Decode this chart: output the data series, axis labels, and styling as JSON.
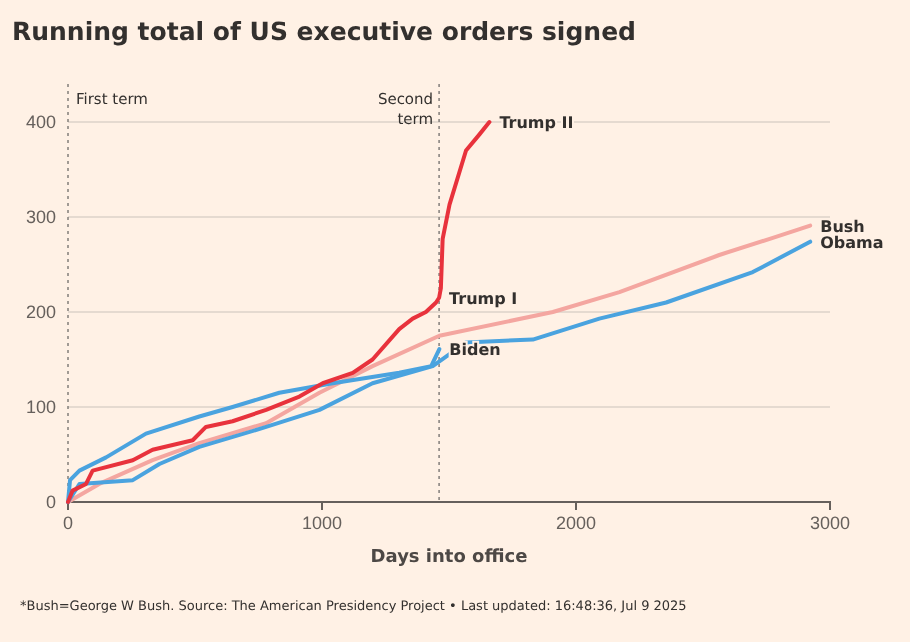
{
  "chart_data": {
    "type": "line",
    "title": "Running total of US executive orders signed",
    "xlabel": "Days into office",
    "xlim": [
      0,
      3000
    ],
    "ylim": [
      0,
      440
    ],
    "xticks": [
      0,
      1000,
      2000,
      3000
    ],
    "yticks": [
      0,
      100,
      200,
      300,
      400
    ],
    "grid": "y",
    "ref_lines": [
      {
        "axis": "x",
        "value": 0,
        "label": "First term",
        "line_style": "dotted"
      },
      {
        "axis": "x",
        "value": 1461,
        "label": "Second term",
        "line_style": "dotted"
      }
    ],
    "annotations": [
      {
        "text": "Trump I",
        "x": 1461,
        "y": 215
      },
      {
        "text": "Trump II",
        "x": 1659,
        "y": 400
      },
      "*Bush=George W Bush. Source: The American Presidency Project • Last updated: 16:48:36, Jul 9 2025"
    ],
    "series": [
      {
        "name": "Bush",
        "color": "#f4a6a0",
        "x": [
          0,
          123,
          333,
          517,
          780,
          990,
          1199,
          1462,
          1909,
          2171,
          2564,
          2775,
          2922
        ],
        "values": [
          0,
          19,
          44,
          62,
          83,
          115,
          143,
          175,
          200,
          221,
          260,
          278,
          291
        ]
      },
      {
        "name": "Obama",
        "color": "#4aa3df",
        "x": [
          0,
          45,
          255,
          360,
          517,
          780,
          990,
          1199,
          1436,
          1567,
          1830,
          2092,
          2355,
          2696,
          2922
        ],
        "values": [
          0,
          19,
          23,
          40,
          58,
          79,
          97,
          125,
          143,
          168,
          171,
          193,
          210,
          242,
          274
        ]
      },
      {
        "name": "Biden",
        "color": "#4aa3df",
        "x": [
          0,
          8,
          45,
          150,
          307,
          517,
          648,
          832,
          1042,
          1304,
          1430,
          1462
        ],
        "values": [
          0,
          23,
          33,
          47,
          72,
          90,
          100,
          115,
          125,
          136,
          143,
          161
        ]
      },
      {
        "color": "#e8323c",
        "x": [
          0,
          18,
          71,
          97,
          255,
          333,
          491,
          543,
          648,
          780,
          911,
          1003,
          1121,
          1199,
          1304,
          1357,
          1409,
          1449,
          1461,
          1468,
          1475,
          1502,
          1567,
          1620,
          1659
        ],
        "values": [
          0,
          12,
          19,
          33,
          44,
          55,
          65,
          79,
          85,
          97,
          111,
          125,
          136,
          150,
          182,
          193,
          200,
          210,
          215,
          225,
          277,
          313,
          370,
          387,
          400
        ]
      }
    ]
  }
}
